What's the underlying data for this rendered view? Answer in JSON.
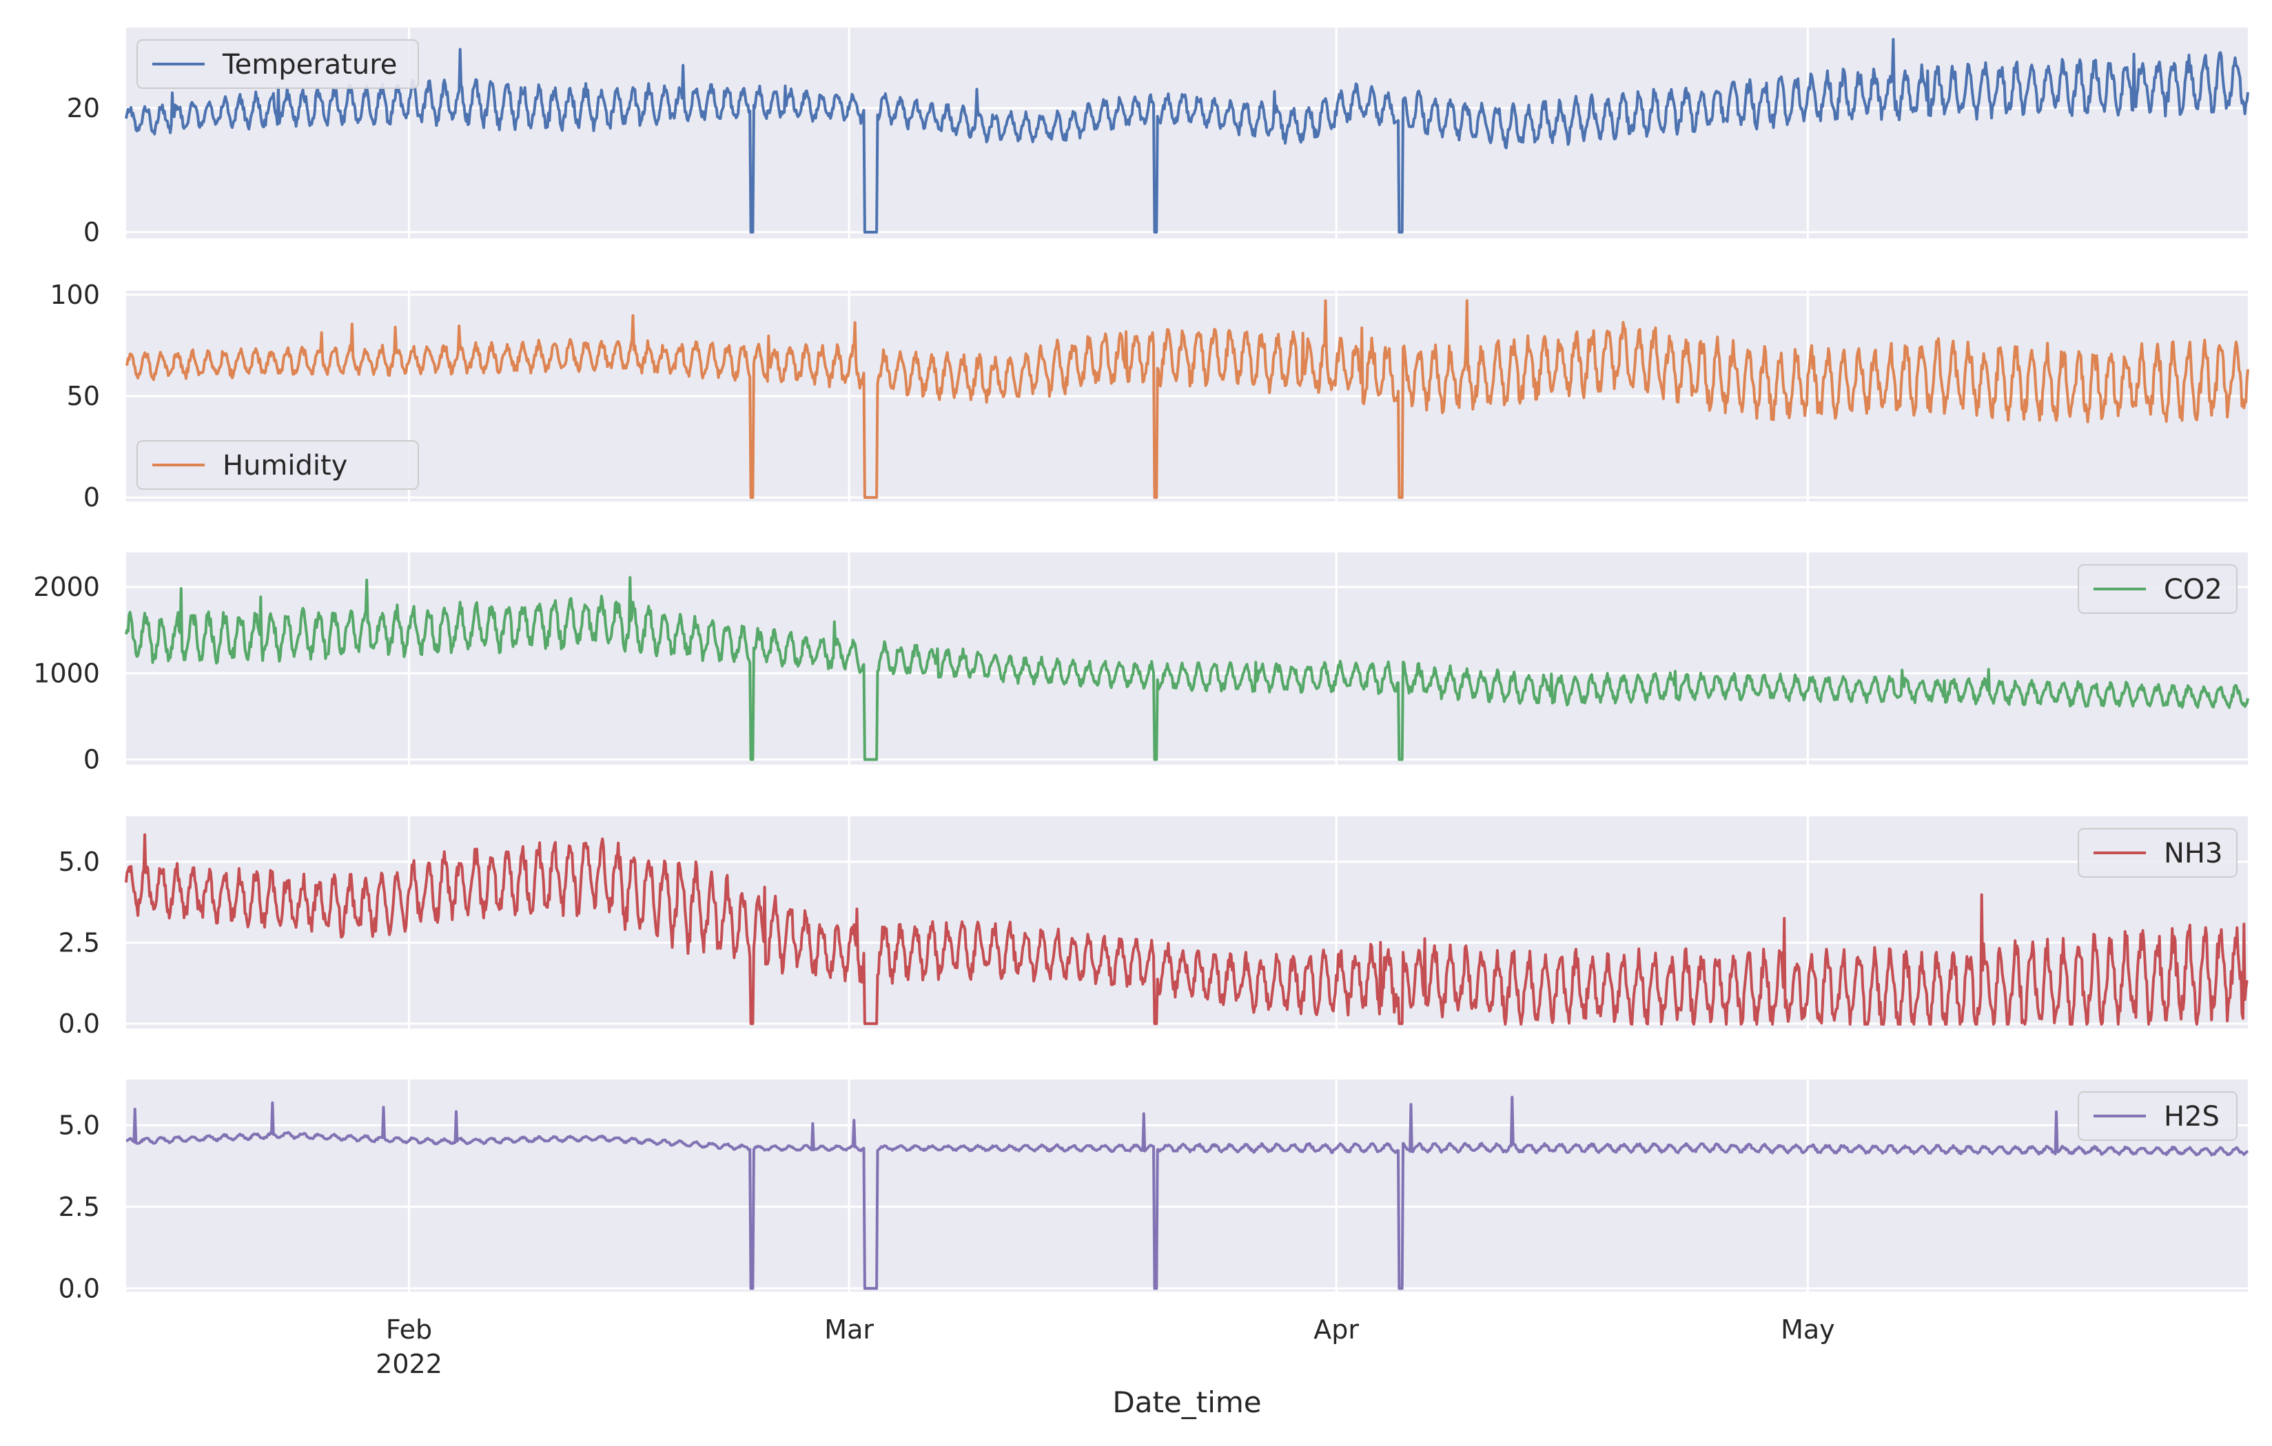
{
  "chart_data": {
    "type": "line",
    "xlabel": "Date_time",
    "x_range": [
      "2022-01-14",
      "2022-05-29"
    ],
    "x_ticks": [
      {
        "date": "2022-02-01",
        "label": "Feb",
        "sublabel": "2022"
      },
      {
        "date": "2022-03-01",
        "label": "Mar",
        "sublabel": ""
      },
      {
        "date": "2022-04-01",
        "label": "Apr",
        "sublabel": ""
      },
      {
        "date": "2022-05-01",
        "label": "May",
        "sublabel": ""
      }
    ],
    "series": [
      {
        "name": "Temperature",
        "color": "#4c72b0",
        "legend": "top-left",
        "ylim": [
          -1,
          33
        ],
        "yticks": [
          0,
          20
        ],
        "ytick_labels": [
          "0",
          "20"
        ],
        "amp": [
          [
            0,
            2.5
          ],
          [
            25,
            4
          ],
          [
            45,
            2.5
          ],
          [
            60,
            2.5
          ],
          [
            100,
            4
          ],
          [
            134,
            5
          ]
        ],
        "keyframes": [
          [
            0,
            18
          ],
          [
            10,
            20
          ],
          [
            20,
            21
          ],
          [
            28,
            20
          ],
          [
            38,
            21
          ],
          [
            48,
            20
          ],
          [
            55,
            17
          ],
          [
            60,
            17
          ],
          [
            62,
            19
          ],
          [
            67,
            20
          ],
          [
            75,
            17
          ],
          [
            78,
            21
          ],
          [
            88,
            17
          ],
          [
            100,
            20
          ],
          [
            110,
            22
          ],
          [
            120,
            23
          ],
          [
            134,
            24
          ]
        ],
        "dropouts": [
          [
            39.7,
            39.9
          ],
          [
            47.0,
            47.8
          ],
          [
            65.4,
            65.6
          ],
          [
            81.0,
            81.2
          ]
        ]
      },
      {
        "name": "Humidity",
        "color": "#dd8452",
        "legend": "bottom-left",
        "ylim": [
          -2,
          102
        ],
        "yticks": [
          0,
          50,
          100
        ],
        "ytick_labels": [
          "0",
          "50",
          "100"
        ],
        "amp": [
          [
            0,
            7
          ],
          [
            30,
            8
          ],
          [
            70,
            15
          ],
          [
            100,
            18
          ],
          [
            134,
            20
          ]
        ],
        "keyframes": [
          [
            0,
            65
          ],
          [
            30,
            70
          ],
          [
            45,
            65
          ],
          [
            55,
            58
          ],
          [
            62,
            68
          ],
          [
            70,
            70
          ],
          [
            75,
            65
          ],
          [
            85,
            58
          ],
          [
            95,
            70
          ],
          [
            105,
            55
          ],
          [
            115,
            60
          ],
          [
            125,
            55
          ],
          [
            134,
            58
          ]
        ],
        "dropouts": [
          [
            39.7,
            39.9
          ],
          [
            47.0,
            47.8
          ],
          [
            65.4,
            65.6
          ],
          [
            81.0,
            81.2
          ]
        ]
      },
      {
        "name": "CO2",
        "color": "#55a868",
        "legend": "top-right",
        "ylim": [
          -60,
          2400
        ],
        "yticks": [
          0,
          1000,
          2000
        ],
        "ytick_labels": [
          "0",
          "1000",
          "2000"
        ],
        "amp": [
          [
            0,
            300
          ],
          [
            30,
            300
          ],
          [
            45,
            200
          ],
          [
            60,
            150
          ],
          [
            85,
            200
          ],
          [
            100,
            160
          ],
          [
            134,
            140
          ]
        ],
        "keyframes": [
          [
            0,
            1400
          ],
          [
            20,
            1500
          ],
          [
            30,
            1600
          ],
          [
            40,
            1300
          ],
          [
            50,
            1150
          ],
          [
            60,
            1000
          ],
          [
            70,
            950
          ],
          [
            80,
            950
          ],
          [
            90,
            800
          ],
          [
            100,
            850
          ],
          [
            110,
            820
          ],
          [
            120,
            780
          ],
          [
            134,
            720
          ]
        ],
        "dropouts": [
          [
            39.7,
            39.9
          ],
          [
            47.0,
            47.8
          ],
          [
            65.4,
            65.6
          ],
          [
            81.0,
            81.2
          ]
        ]
      },
      {
        "name": "NH3",
        "color": "#c44e52",
        "legend": "top-right",
        "ylim": [
          -0.15,
          6.4
        ],
        "yticks": [
          0,
          2.5,
          5
        ],
        "ytick_labels": [
          "0.0",
          "2.5",
          "5.0"
        ],
        "amp": [
          [
            0,
            0.8
          ],
          [
            28,
            1.2
          ],
          [
            35,
            1.5
          ],
          [
            45,
            1.0
          ],
          [
            65,
            0.8
          ],
          [
            80,
            1.1
          ],
          [
            100,
            1.2
          ],
          [
            134,
            1.6
          ]
        ],
        "keyframes": [
          [
            0,
            4.2
          ],
          [
            15,
            3.6
          ],
          [
            20,
            4.2
          ],
          [
            30,
            4.6
          ],
          [
            36,
            3.6
          ],
          [
            45,
            2.2
          ],
          [
            55,
            2.3
          ],
          [
            65,
            1.8
          ],
          [
            72,
            1.2
          ],
          [
            80,
            1.4
          ],
          [
            90,
            1.1
          ],
          [
            100,
            1.1
          ],
          [
            115,
            1.0
          ],
          [
            125,
            1.3
          ],
          [
            134,
            1.6
          ]
        ],
        "dropouts": [
          [
            39.7,
            39.9
          ],
          [
            47.0,
            47.8
          ],
          [
            65.4,
            65.6
          ],
          [
            81.0,
            81.2
          ]
        ]
      },
      {
        "name": "H2S",
        "color": "#8172b3",
        "legend": "top-right",
        "ylim": [
          -0.1,
          6.4
        ],
        "yticks": [
          0,
          2.5,
          5
        ],
        "ytick_labels": [
          "0.0",
          "2.5",
          "5.0"
        ],
        "amp": [
          [
            0,
            0.1
          ],
          [
            50,
            0.08
          ],
          [
            80,
            0.15
          ],
          [
            134,
            0.12
          ]
        ],
        "keyframes": [
          [
            0,
            4.5
          ],
          [
            10,
            4.7
          ],
          [
            20,
            4.5
          ],
          [
            30,
            4.6
          ],
          [
            40,
            4.3
          ],
          [
            60,
            4.3
          ],
          [
            80,
            4.3
          ],
          [
            100,
            4.3
          ],
          [
            134,
            4.2
          ]
        ],
        "dropouts": [
          [
            39.7,
            39.9
          ],
          [
            47.0,
            47.8
          ],
          [
            65.4,
            65.6
          ],
          [
            81.0,
            81.2
          ]
        ]
      }
    ]
  }
}
